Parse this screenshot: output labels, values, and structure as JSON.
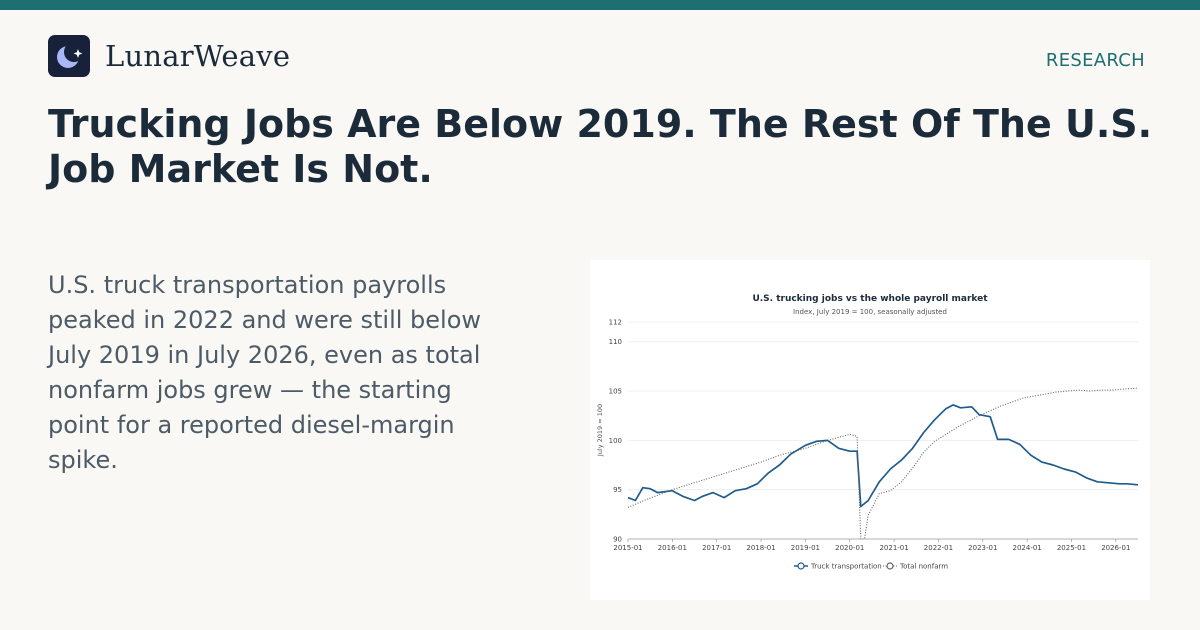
{
  "brand": {
    "name": "LunarWeave",
    "logo_icon": "crescent-moon-star-icon"
  },
  "nav": {
    "research_label": "RESEARCH"
  },
  "headline": "Trucking Jobs Are Below 2019. The Rest Of The U.S. Job Market Is Not.",
  "summary": "U.S. truck transportation payrolls peaked in 2022 and were still below July 2019 in July 2026, even as total nonfarm jobs grew — the starting point for a reported diesel-margin spike.",
  "colors": {
    "accent": "#1d6f72",
    "truck_series": "#1f5b8c",
    "nonfarm_series": "#666666",
    "background": "#f9f8f4",
    "logo_bg": "#17213a",
    "moon": "#a9b6f7"
  },
  "chart_data": {
    "type": "line",
    "title": "U.S. trucking jobs vs the whole payroll market",
    "subtitle": "Index, July 2019 = 100, seasonally adjusted",
    "ylabel": "July 2019 = 100",
    "xlabel": "",
    "ylim": [
      90,
      112
    ],
    "yticks": [
      90,
      95,
      100,
      105,
      110,
      112
    ],
    "xlim": [
      "2015-01",
      "2026-07"
    ],
    "xticks": [
      "2015-01",
      "2016-01",
      "2017-01",
      "2018-01",
      "2019-01",
      "2020-01",
      "2021-01",
      "2022-01",
      "2023-01",
      "2024-01",
      "2025-01",
      "2026-01"
    ],
    "grid": "horizontal",
    "legend_position": "bottom-center",
    "series": [
      {
        "name": "Truck transportation",
        "style": "solid",
        "points": [
          [
            "2015-01",
            94.2
          ],
          [
            "2015-03",
            93.9
          ],
          [
            "2015-05",
            95.2
          ],
          [
            "2015-07",
            95.1
          ],
          [
            "2015-09",
            94.7
          ],
          [
            "2016-01",
            94.9
          ],
          [
            "2016-04",
            94.3
          ],
          [
            "2016-07",
            93.9
          ],
          [
            "2016-09",
            94.3
          ],
          [
            "2016-12",
            94.7
          ],
          [
            "2017-03",
            94.2
          ],
          [
            "2017-06",
            94.9
          ],
          [
            "2017-09",
            95.1
          ],
          [
            "2017-12",
            95.6
          ],
          [
            "2018-03",
            96.7
          ],
          [
            "2018-06",
            97.5
          ],
          [
            "2018-09",
            98.6
          ],
          [
            "2019-01",
            99.5
          ],
          [
            "2019-04",
            99.9
          ],
          [
            "2019-07",
            100.0
          ],
          [
            "2019-10",
            99.2
          ],
          [
            "2020-01",
            98.9
          ],
          [
            "2020-03",
            98.9
          ],
          [
            "2020-04",
            93.3
          ],
          [
            "2020-06",
            93.9
          ],
          [
            "2020-09",
            95.8
          ],
          [
            "2020-12",
            97.1
          ],
          [
            "2021-03",
            98.0
          ],
          [
            "2021-06",
            99.2
          ],
          [
            "2021-09",
            100.8
          ],
          [
            "2021-12",
            102.1
          ],
          [
            "2022-03",
            103.2
          ],
          [
            "2022-05",
            103.6
          ],
          [
            "2022-07",
            103.3
          ],
          [
            "2022-10",
            103.4
          ],
          [
            "2022-12",
            102.6
          ],
          [
            "2023-03",
            102.4
          ],
          [
            "2023-05",
            100.1
          ],
          [
            "2023-08",
            100.1
          ],
          [
            "2023-11",
            99.6
          ],
          [
            "2024-02",
            98.5
          ],
          [
            "2024-05",
            97.8
          ],
          [
            "2024-08",
            97.5
          ],
          [
            "2024-11",
            97.1
          ],
          [
            "2025-02",
            96.8
          ],
          [
            "2025-05",
            96.2
          ],
          [
            "2025-08",
            95.8
          ],
          [
            "2025-11",
            95.7
          ],
          [
            "2026-02",
            95.6
          ],
          [
            "2026-04",
            95.6
          ],
          [
            "2026-07",
            95.5
          ]
        ]
      },
      {
        "name": "Total nonfarm",
        "style": "dotted",
        "points": [
          [
            "2015-01",
            93.2
          ],
          [
            "2015-06",
            94.0
          ],
          [
            "2016-01",
            95.0
          ],
          [
            "2016-06",
            95.6
          ],
          [
            "2017-01",
            96.4
          ],
          [
            "2017-06",
            97.0
          ],
          [
            "2018-01",
            97.8
          ],
          [
            "2018-06",
            98.5
          ],
          [
            "2019-01",
            99.2
          ],
          [
            "2019-07",
            100.0
          ],
          [
            "2020-01",
            100.6
          ],
          [
            "2020-03",
            100.4
          ],
          [
            "2020-04",
            87.0
          ],
          [
            "2020-05",
            89.2
          ],
          [
            "2020-06",
            92.4
          ],
          [
            "2020-09",
            94.6
          ],
          [
            "2020-12",
            94.9
          ],
          [
            "2021-03",
            95.8
          ],
          [
            "2021-06",
            97.2
          ],
          [
            "2021-09",
            98.8
          ],
          [
            "2021-12",
            99.9
          ],
          [
            "2022-03",
            100.6
          ],
          [
            "2022-06",
            101.3
          ],
          [
            "2022-09",
            101.9
          ],
          [
            "2022-12",
            102.5
          ],
          [
            "2023-03",
            103.0
          ],
          [
            "2023-06",
            103.5
          ],
          [
            "2023-09",
            103.9
          ],
          [
            "2023-12",
            104.3
          ],
          [
            "2024-03",
            104.5
          ],
          [
            "2024-06",
            104.7
          ],
          [
            "2024-09",
            104.9
          ],
          [
            "2024-12",
            105.0
          ],
          [
            "2025-03",
            105.1
          ],
          [
            "2025-06",
            105.0
          ],
          [
            "2025-09",
            105.1
          ],
          [
            "2025-12",
            105.1
          ],
          [
            "2026-03",
            105.2
          ],
          [
            "2026-07",
            105.3
          ]
        ]
      }
    ]
  }
}
